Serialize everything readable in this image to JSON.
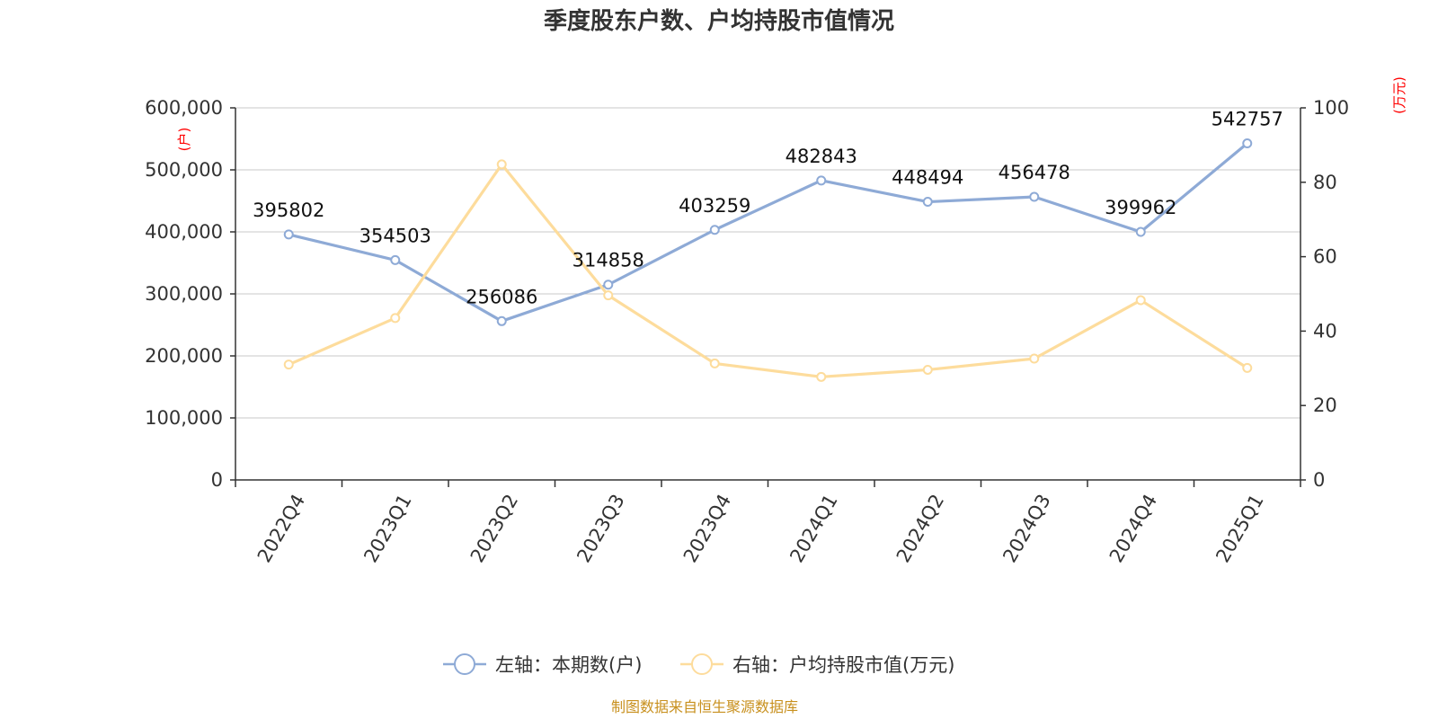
{
  "chart_data": {
    "type": "line",
    "title": "季度股东户数、户均持股市值情况",
    "categories": [
      "2022Q4",
      "2023Q1",
      "2023Q2",
      "2023Q3",
      "2023Q4",
      "2024Q1",
      "2024Q2",
      "2024Q3",
      "2024Q4",
      "2025Q1"
    ],
    "left_axis": {
      "unit": "(户)",
      "range": [
        0,
        600000
      ],
      "ticks": [
        0,
        100000,
        200000,
        300000,
        400000,
        500000,
        600000
      ],
      "tick_labels": [
        "0",
        "100,000",
        "200,000",
        "300,000",
        "400,000",
        "500,000",
        "600,000"
      ]
    },
    "right_axis": {
      "unit": "(万元)",
      "range": [
        0,
        100
      ],
      "ticks": [
        0,
        20,
        40,
        60,
        80,
        100
      ],
      "tick_labels": [
        "0",
        "20",
        "40",
        "60",
        "80",
        "100"
      ]
    },
    "series": [
      {
        "name": "左轴：本期数(户)",
        "axis": "left",
        "color": "#8eaad6",
        "values": [
          395802,
          354503,
          256086,
          314858,
          403259,
          482843,
          448494,
          456478,
          399962,
          542757
        ],
        "labels": [
          "395802",
          "354503",
          "256086",
          "314858",
          "403259",
          "482843",
          "448494",
          "456478",
          "399962",
          "542757"
        ]
      },
      {
        "name": "右轴：户均持股市值(万元)",
        "axis": "right",
        "color": "#fddc9c",
        "values": [
          31.0,
          43.5,
          84.8,
          49.6,
          31.3,
          27.7,
          29.6,
          32.6,
          48.3,
          30.1
        ]
      }
    ],
    "grid": true,
    "legend_position": "bottom-center"
  },
  "source": "制图数据来自恒生聚源数据库"
}
